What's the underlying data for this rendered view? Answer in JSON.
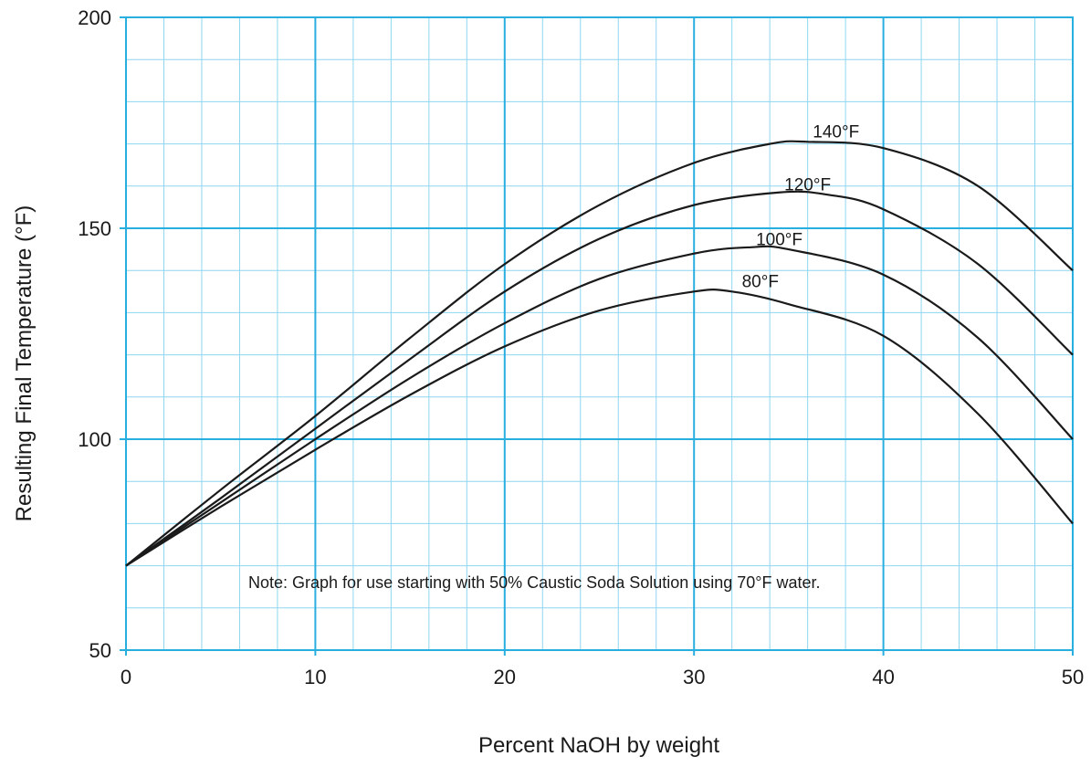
{
  "chart_data": {
    "type": "line",
    "title": "",
    "xlabel": "Percent NaOH by weight",
    "ylabel": "Resulting Final Temperature (°F)",
    "xlim": [
      0,
      50
    ],
    "ylim": [
      50,
      200
    ],
    "x_ticks": [
      0,
      10,
      20,
      30,
      40,
      50
    ],
    "y_ticks": [
      50,
      100,
      150,
      200
    ],
    "x_minor_step": 2,
    "y_minor_step": 10,
    "grid": true,
    "colors": {
      "grid_major": "#29aee0",
      "grid_minor": "#8fd6f0",
      "curve": "#1a1a1a",
      "text": "#1a1a1a"
    },
    "note": "Note: Graph for use starting with 50% Caustic Soda Solution using 70°F water.",
    "series": [
      {
        "name": "80°F",
        "x": [
          0,
          5,
          10,
          15,
          20,
          25,
          30,
          32,
          35,
          40,
          45,
          50
        ],
        "y": [
          70,
          84,
          97.5,
          110.5,
          122,
          130.5,
          135,
          135,
          132,
          124.5,
          106,
          80
        ],
        "label_at": [
          33.5,
          136
        ]
      },
      {
        "name": "100°F",
        "x": [
          0,
          5,
          10,
          15,
          20,
          25,
          30,
          33,
          35,
          40,
          45,
          50
        ],
        "y": [
          70,
          85,
          100,
          114.5,
          127.5,
          138,
          144,
          145.5,
          145,
          139,
          124,
          100
        ],
        "label_at": [
          34.5,
          146
        ]
      },
      {
        "name": "120°F",
        "x": [
          0,
          5,
          10,
          15,
          20,
          25,
          30,
          34.5,
          37,
          40,
          45,
          50
        ],
        "y": [
          70,
          86,
          102.5,
          119,
          135,
          147.5,
          155.5,
          158.5,
          158,
          154.5,
          141.5,
          120
        ],
        "label_at": [
          36,
          159
        ]
      },
      {
        "name": "140°F",
        "x": [
          0,
          5,
          10,
          15,
          20,
          25,
          30,
          34,
          36,
          40,
          45,
          50
        ],
        "y": [
          70,
          88,
          105.5,
          124,
          141.5,
          155.5,
          165.5,
          170,
          170.5,
          169,
          160,
          140
        ],
        "label_at": [
          37.5,
          171.5
        ]
      }
    ]
  }
}
